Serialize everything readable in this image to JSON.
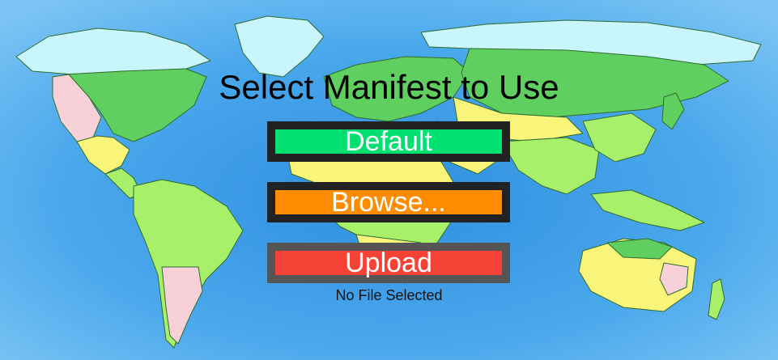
{
  "page": {
    "title": "Select Manifest to Use"
  },
  "buttons": {
    "default_label": "Default",
    "browse_label": "Browse...",
    "upload_label": "Upload"
  },
  "status": {
    "file_status": "No File Selected"
  },
  "colors": {
    "ocean": "#4aa8ec",
    "default_button": "#00e070",
    "browse_button": "#ff8c00",
    "upload_button": "#f44336",
    "button_border": "#222222"
  }
}
